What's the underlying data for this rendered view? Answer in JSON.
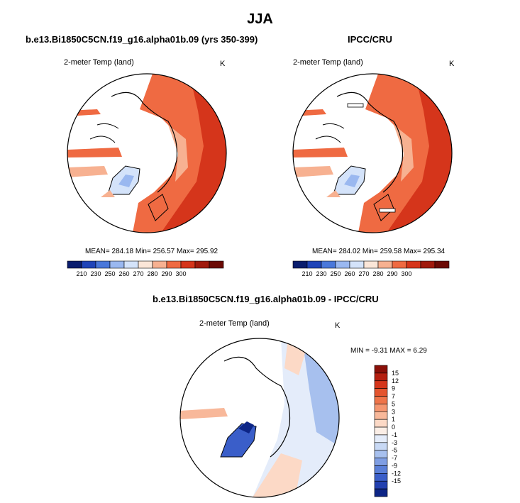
{
  "title": "JJA",
  "panels": [
    {
      "title": "b.e13.Bi1850C5CN.f19_g16.alpha01b.09 (yrs 350-399)",
      "variable": "2-meter Temp (land)",
      "units": "K",
      "stats": "MEAN= 284.18  Min= 256.57  Max= 295.92"
    },
    {
      "title": "IPCC/CRU",
      "variable": "2-meter Temp (land)",
      "units": "K",
      "stats": "MEAN= 284.02  Min= 259.58  Max= 295.34"
    },
    {
      "title": "b.e13.Bi1850C5CN.f19_g16.alpha01b.09 - IPCC/CRU",
      "variable": "2-meter Temp (land)",
      "units": "K",
      "stats": "MIN =  -9.31 MAX =   6.29"
    }
  ],
  "chart_data": [
    {
      "type": "heatmap",
      "title": "b.e13.Bi1850C5CN.f19_g16.alpha01b.09 (yrs 350-399)",
      "projection": "north polar stereographic",
      "variable": "2-meter Temp (land)",
      "units": "K",
      "mean": 284.18,
      "min": 256.57,
      "max": 295.92,
      "colorbar_ticks": [
        210,
        230,
        250,
        260,
        270,
        280,
        290,
        300
      ],
      "colorbar_colors": [
        "#0a1d6e",
        "#1f44b8",
        "#4a78da",
        "#9ab8f0",
        "#d4e3fa",
        "#fbe6d8",
        "#f7b191",
        "#ef6a42",
        "#d5351b",
        "#a01a0d",
        "#6b0a05"
      ]
    },
    {
      "type": "heatmap",
      "title": "IPCC/CRU",
      "projection": "north polar stereographic",
      "variable": "2-meter Temp (land)",
      "units": "K",
      "mean": 284.02,
      "min": 259.58,
      "max": 295.34,
      "colorbar_ticks": [
        210,
        230,
        250,
        260,
        270,
        280,
        290,
        300
      ],
      "colorbar_colors": [
        "#0a1d6e",
        "#1f44b8",
        "#4a78da",
        "#9ab8f0",
        "#d4e3fa",
        "#fbe6d8",
        "#f7b191",
        "#ef6a42",
        "#d5351b",
        "#a01a0d",
        "#6b0a05"
      ]
    },
    {
      "type": "heatmap",
      "title": "b.e13.Bi1850C5CN.f19_g16.alpha01b.09 - IPCC/CRU",
      "projection": "north polar stereographic",
      "variable": "2-meter Temp (land)",
      "units": "K",
      "min": -9.31,
      "max": 6.29,
      "colorbar_ticks": [
        15,
        12,
        9,
        7,
        5,
        3,
        1,
        0,
        -1,
        -3,
        -5,
        -7,
        -9,
        -12,
        -15
      ],
      "colorbar_colors": [
        "#8a0f08",
        "#b51f10",
        "#d5351b",
        "#e4542e",
        "#ef7449",
        "#f59670",
        "#f8b89a",
        "#fcd9c6",
        "#fbeee6",
        "#e4ecfa",
        "#c8d9f5",
        "#a7c0ee",
        "#7f9ee3",
        "#5a7fd8",
        "#3a5ec9",
        "#2240b0",
        "#0d2586"
      ]
    }
  ]
}
